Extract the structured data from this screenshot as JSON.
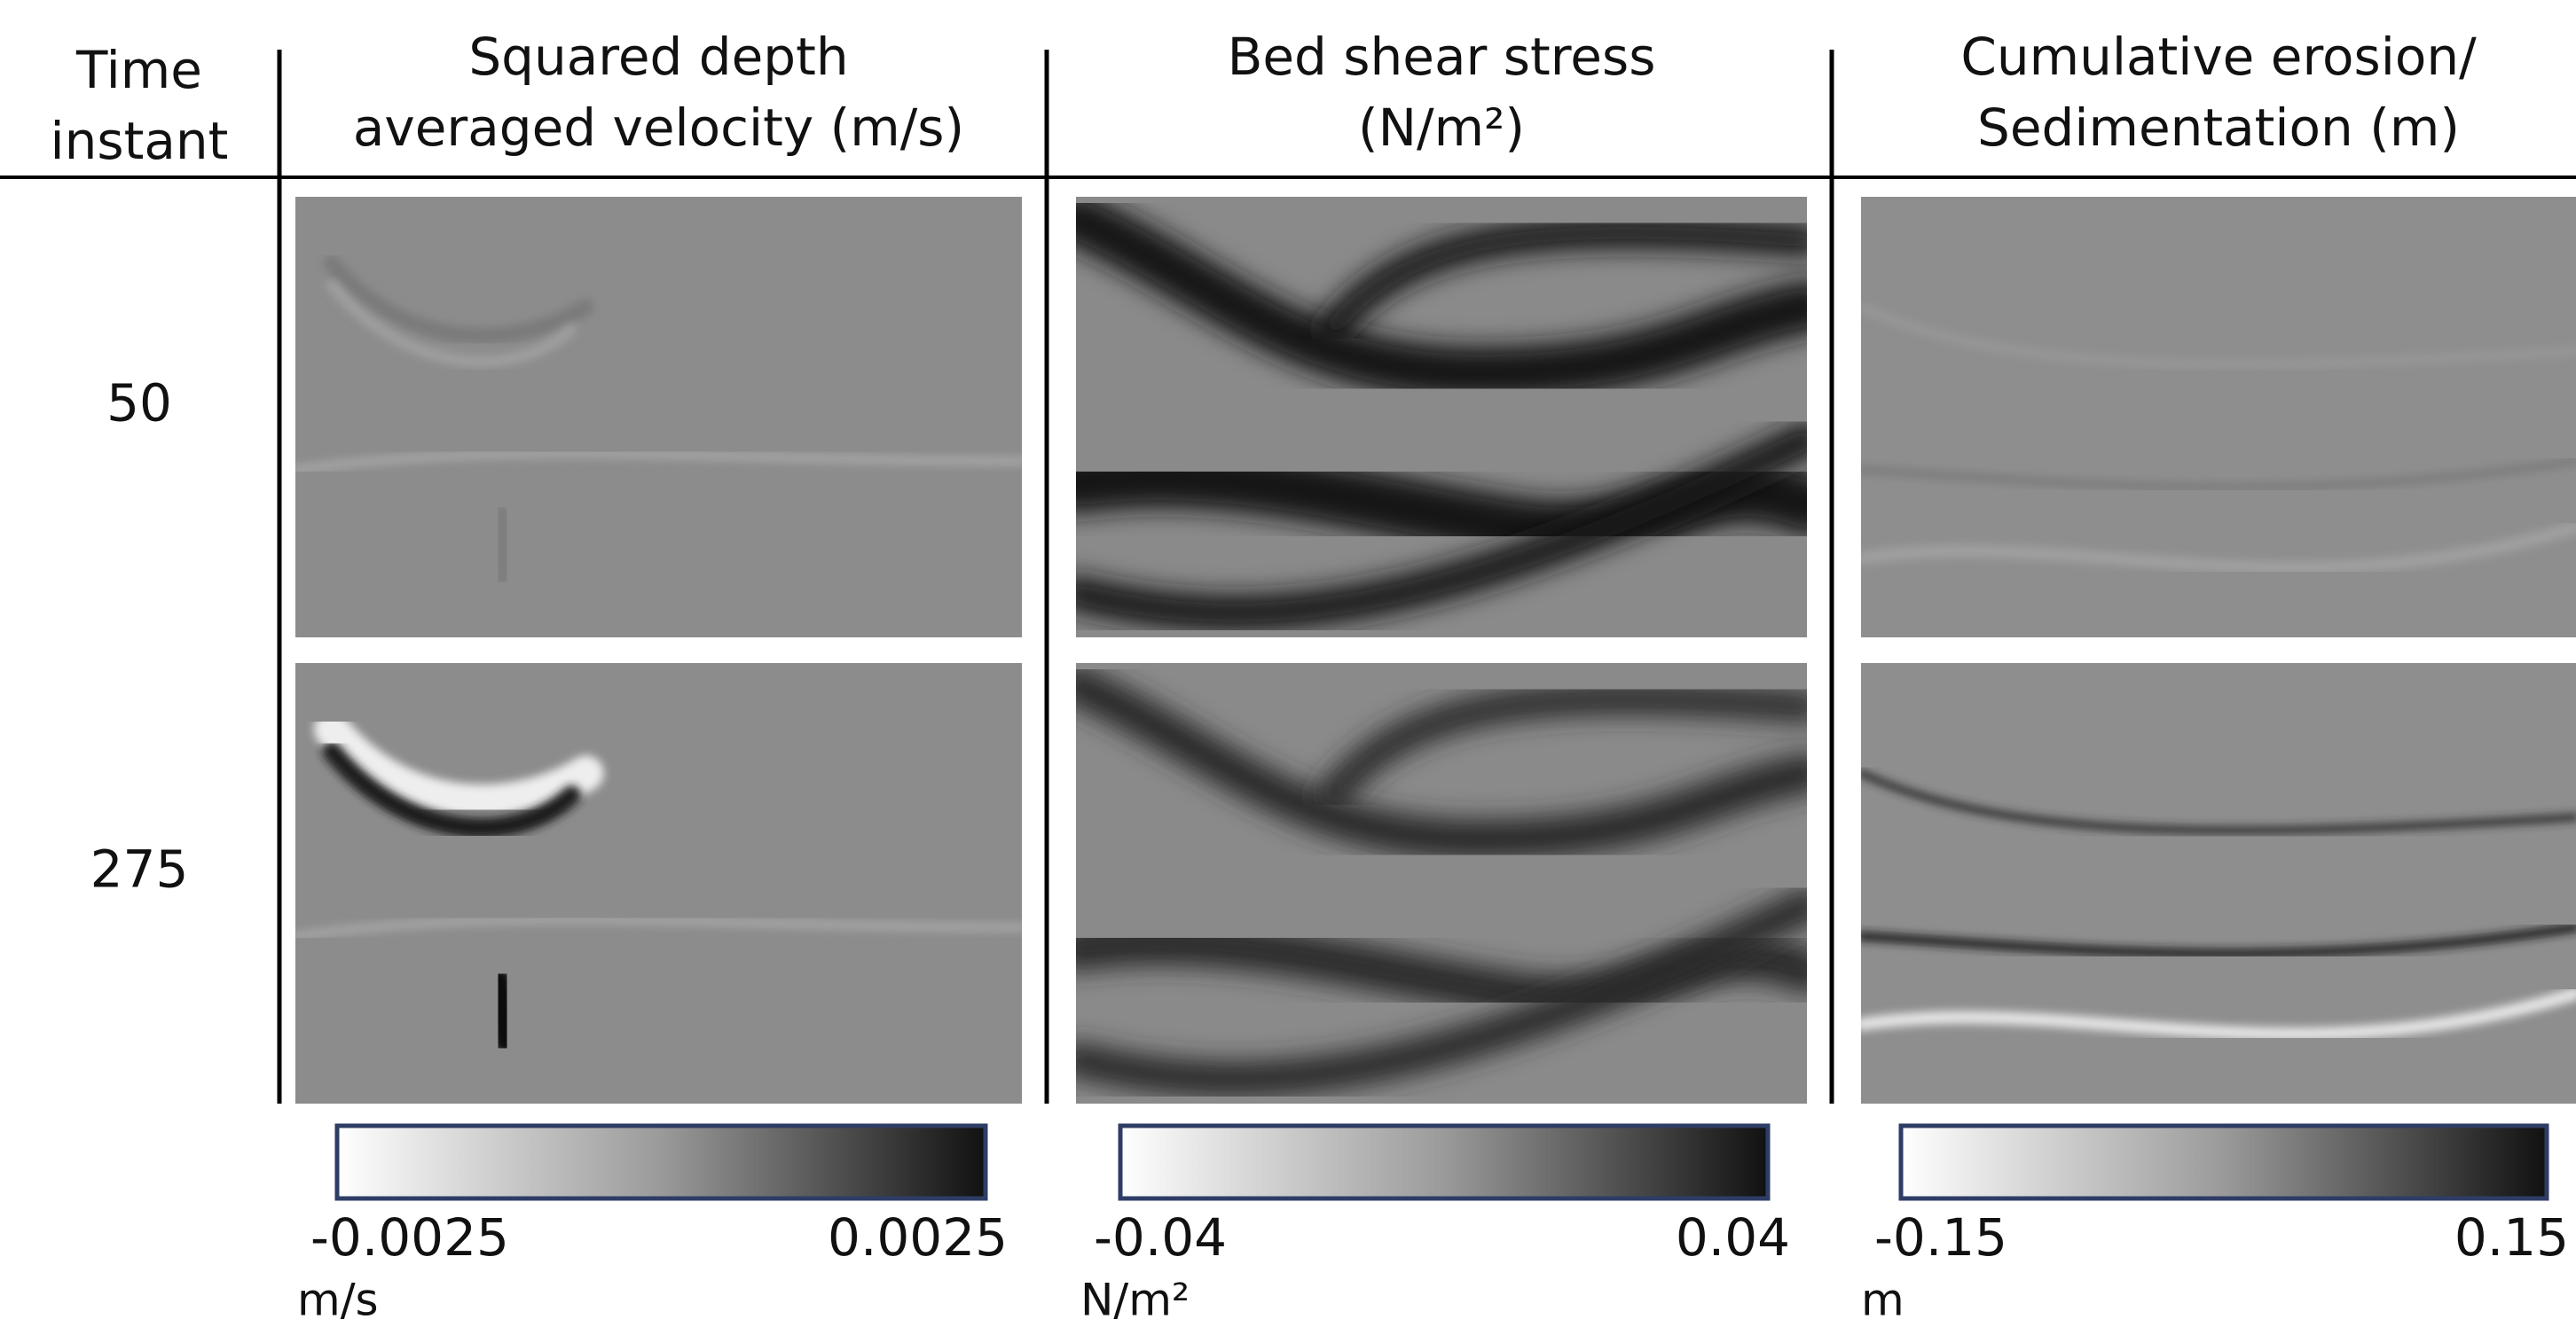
{
  "header": {
    "time": [
      "Time",
      "instant"
    ],
    "columns": [
      {
        "lines": [
          "Squared depth",
          "averaged velocity (m/s)"
        ],
        "colorbar": {
          "min": -0.0025,
          "max": 0.0025,
          "unit": "m/s"
        }
      },
      {
        "lines": [
          "Bed shear stress",
          "(N/m²)"
        ],
        "colorbar": {
          "min": -0.04,
          "max": 0.04,
          "unit": "N/m²"
        }
      },
      {
        "lines": [
          "Cumulative erosion/",
          "Sedimentation (m)"
        ],
        "colorbar": {
          "min": -0.15,
          "max": 0.15,
          "unit": "m"
        }
      }
    ]
  },
  "rows": [
    50,
    275
  ]
}
